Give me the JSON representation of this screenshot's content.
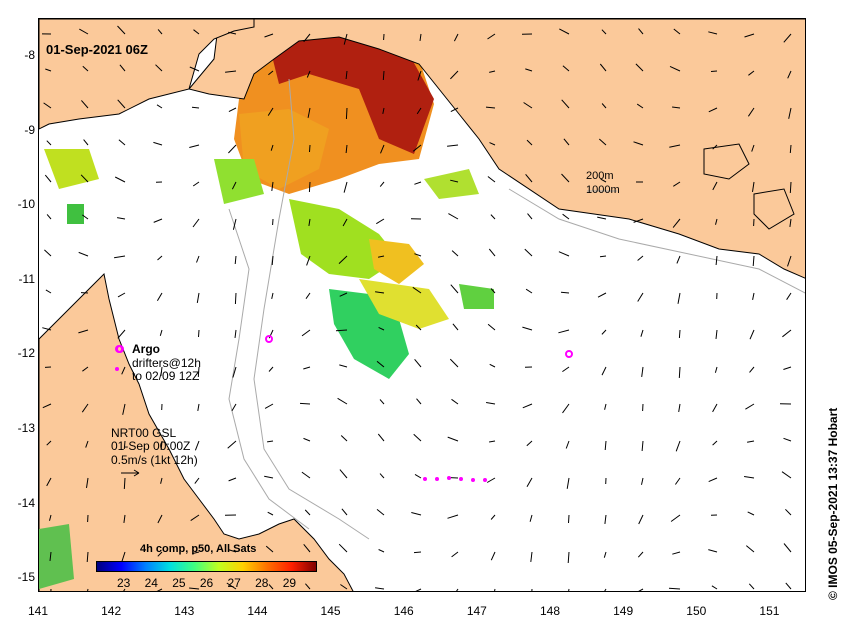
{
  "map": {
    "date_label": "01-Sep-2021 06Z",
    "x_ticks": [
      "141",
      "142",
      "143",
      "144",
      "145",
      "146",
      "147",
      "148",
      "149",
      "150",
      "151"
    ],
    "y_ticks": [
      "-8",
      "-9",
      "-10",
      "-11",
      "-12",
      "-13",
      "-14",
      "-15"
    ],
    "lon_range": [
      141,
      151.5
    ],
    "lat_range": [
      -15.2,
      -7.5
    ],
    "colors": {
      "land": "#fbc99a",
      "coast": "#000000",
      "bathy": "#aaaaaa",
      "argo": "#ff00ff",
      "arrow": "#000000"
    }
  },
  "legend": {
    "argo_label": "Argo",
    "drifters_label": "drifters@12h",
    "drifters_to": "to 02/09 12Z"
  },
  "currents": {
    "title": "NRT00 GSL",
    "time": "01-Sep 00:00Z",
    "speed": "0.5m/s (1kt 12h)"
  },
  "bathymetry": {
    "label_200": "200m",
    "label_1000": "1000m"
  },
  "colorbar": {
    "title": "4h comp, p50, All Sats",
    "labels": [
      "23",
      "24",
      "25",
      "26",
      "27",
      "28",
      "29"
    ],
    "min": 22,
    "max": 30,
    "gradient": [
      "#00007f",
      "#0000ff",
      "#0080ff",
      "#00e0e0",
      "#40ff80",
      "#c0ff20",
      "#ffd000",
      "#ff7000",
      "#ff2000",
      "#7f0000"
    ]
  },
  "credit": "© IMOS 05-Sep-2021 13:37 Hobart"
}
